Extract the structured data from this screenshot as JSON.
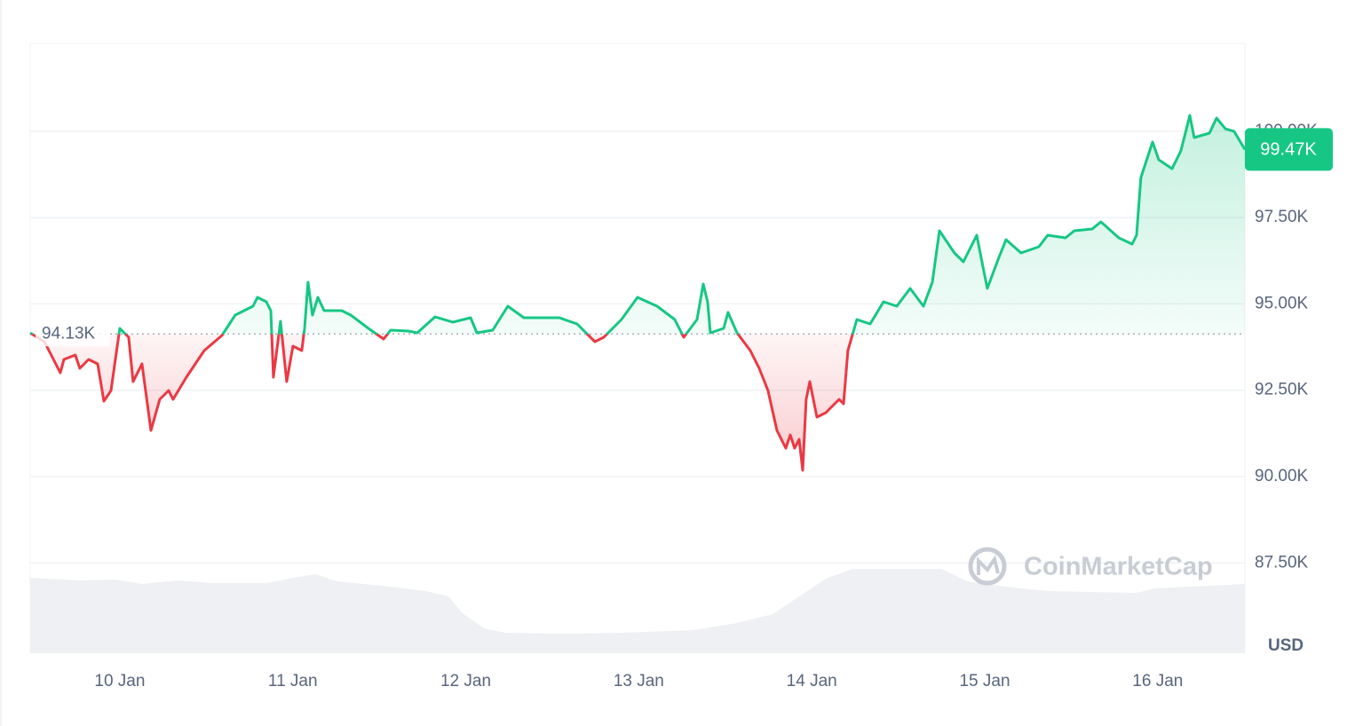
{
  "chart_data": {
    "type": "line",
    "y_label": "USD",
    "watermark": "CoinMarketCap",
    "up_color": "#16c784",
    "down_color": "#ea3943",
    "baseline": {
      "value": 94130,
      "label": "94.13K"
    },
    "last_price": {
      "value": 99470,
      "label": "99.47K"
    },
    "xlim": [
      9.482,
      16.504
    ],
    "xticks": [
      {
        "value": 10,
        "label": "10 Jan"
      },
      {
        "value": 11,
        "label": "11 Jan"
      },
      {
        "value": 12,
        "label": "12 Jan"
      },
      {
        "value": 13,
        "label": "13 Jan"
      },
      {
        "value": 14,
        "label": "14 Jan"
      },
      {
        "value": 15,
        "label": "15 Jan"
      },
      {
        "value": 16,
        "label": "16 Jan"
      }
    ],
    "ylim": [
      84887,
      102538
    ],
    "yticks": [
      {
        "value": 87500,
        "label": "87.50K"
      },
      {
        "value": 90000,
        "label": "90.00K"
      },
      {
        "value": 92500,
        "label": "92.50K"
      },
      {
        "value": 95000,
        "label": "95.00K"
      },
      {
        "value": 97500,
        "label": "97.50K"
      },
      {
        "value": 100000,
        "label": "100.00K"
      }
    ],
    "grid": true,
    "x": [
      9.482,
      9.564,
      9.656,
      9.677,
      9.743,
      9.769,
      9.82,
      9.872,
      9.908,
      9.949,
      10.0,
      10.051,
      10.077,
      10.128,
      10.18,
      10.231,
      10.282,
      10.308,
      10.385,
      10.488,
      10.59,
      10.667,
      10.77,
      10.796,
      10.847,
      10.873,
      10.888,
      10.929,
      10.965,
      11.001,
      11.052,
      11.068,
      11.088,
      11.114,
      11.145,
      11.181,
      11.283,
      11.335,
      11.437,
      11.525,
      11.566,
      11.668,
      11.72,
      11.822,
      11.925,
      12.028,
      12.064,
      12.156,
      12.243,
      12.336,
      12.438,
      12.541,
      12.644,
      12.746,
      12.798,
      12.9,
      12.993,
      13.106,
      13.208,
      13.26,
      13.337,
      13.373,
      13.398,
      13.414,
      13.491,
      13.516,
      13.568,
      13.645,
      13.696,
      13.747,
      13.799,
      13.85,
      13.876,
      13.901,
      13.927,
      13.948,
      13.968,
      13.989,
      14.03,
      14.081,
      14.158,
      14.184,
      14.209,
      14.261,
      14.338,
      14.415,
      14.492,
      14.569,
      14.646,
      14.697,
      14.738,
      14.825,
      14.877,
      14.954,
      14.979,
      15.015,
      15.082,
      15.123,
      15.21,
      15.313,
      15.364,
      15.467,
      15.518,
      15.621,
      15.672,
      15.775,
      15.852,
      15.878,
      15.903,
      15.97,
      16.006,
      16.083,
      16.134,
      16.186,
      16.211,
      16.299,
      16.34,
      16.391,
      16.442,
      16.504
    ],
    "values": [
      94160,
      93905,
      93006,
      93391,
      93520,
      93134,
      93391,
      93263,
      92184,
      92492,
      94290,
      94033,
      92749,
      93263,
      91336,
      92235,
      92492,
      92235,
      92877,
      93648,
      94085,
      94676,
      94932,
      95189,
      95061,
      94804,
      92877,
      94496,
      92749,
      93776,
      93648,
      94290,
      95626,
      94676,
      95189,
      94804,
      94804,
      94676,
      94290,
      93982,
      94239,
      94213,
      94162,
      94624,
      94470,
      94599,
      94162,
      94239,
      94932,
      94599,
      94599,
      94599,
      94419,
      93905,
      94033,
      94547,
      95189,
      94932,
      94547,
      94033,
      94547,
      95575,
      95061,
      94162,
      94290,
      94753,
      94162,
      93648,
      93134,
      92492,
      91336,
      90822,
      91207,
      90822,
      91079,
      90180,
      92235,
      92749,
      91721,
      91850,
      92235,
      92107,
      93648,
      94547,
      94419,
      95061,
      94932,
      95446,
      94932,
      95626,
      97116,
      96474,
      96217,
      96988,
      96345,
      95446,
      96345,
      96859,
      96474,
      96654,
      96988,
      96911,
      97116,
      97168,
      97373,
      96911,
      96731,
      96988,
      98658,
      99685,
      99171,
      98914,
      99428,
      100456,
      99814,
      99942,
      100379,
      100070,
      99993,
      99470
    ]
  }
}
